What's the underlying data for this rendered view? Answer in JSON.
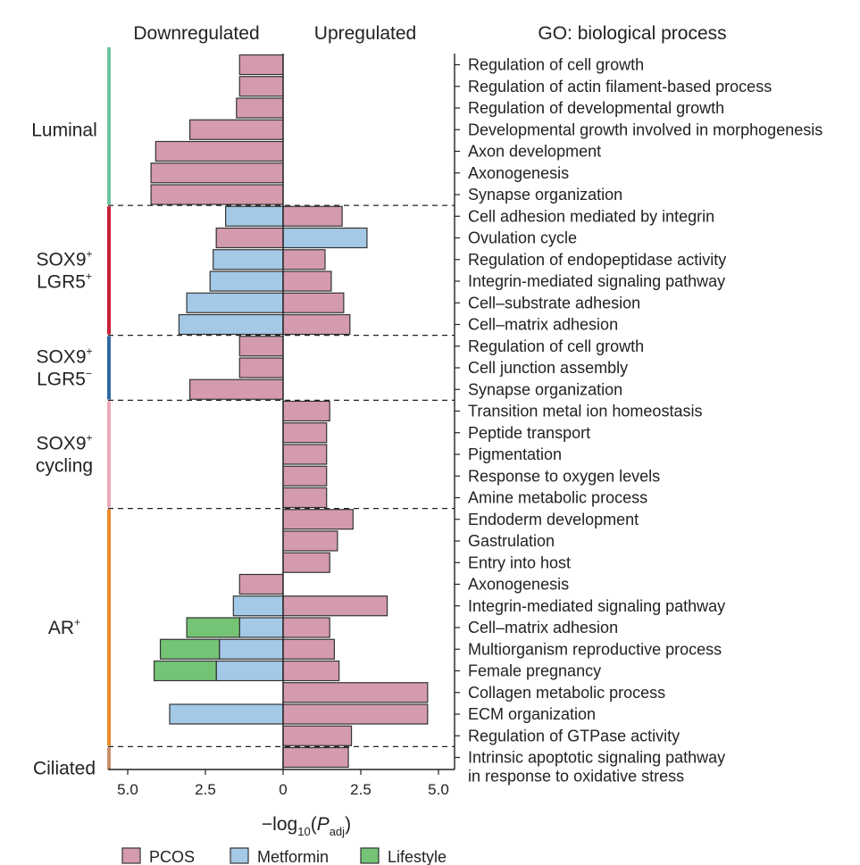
{
  "chart_data": {
    "type": "bar",
    "orientation": "horizontal-diverging",
    "headers": {
      "down": "Downregulated",
      "up": "Upregulated",
      "go": "GO: biological process"
    },
    "xlabel": "−log₁₀(P_adj)",
    "xlabel_parts": {
      "prefix": "−log",
      "sub1": "10",
      "open": "(",
      "italic": "P",
      "sub2": "adj",
      "close": ")"
    },
    "xlim": [
      -5.5,
      5.5
    ],
    "xticks": [
      {
        "value": -5,
        "label": "5.0"
      },
      {
        "value": -2.5,
        "label": "2.5"
      },
      {
        "value": 0,
        "label": "0"
      },
      {
        "value": 2.5,
        "label": "2.5"
      },
      {
        "value": 5,
        "label": "5.0"
      }
    ],
    "series_colors": {
      "PCOS": "#d49aae",
      "Metformin": "#a3c9e7",
      "Lifestyle": "#75c476"
    },
    "legend": [
      {
        "name": "PCOS",
        "color": "#d49aae"
      },
      {
        "name": "Metformin",
        "color": "#a3c9e7"
      },
      {
        "name": "Lifestyle",
        "color": "#75c476"
      }
    ],
    "groups": [
      {
        "name": "Luminal",
        "lines": [
          "Luminal"
        ],
        "sup": [
          ""
        ],
        "color": "#6cc3a0",
        "rows": [
          0,
          6
        ]
      },
      {
        "name": "SOX9+ LGR5+",
        "lines": [
          "SOX9",
          "LGR5"
        ],
        "sup": [
          "+",
          "+"
        ],
        "color": "#c8203a",
        "rows": [
          7,
          12
        ]
      },
      {
        "name": "SOX9+ LGR5−",
        "lines": [
          "SOX9",
          "LGR5"
        ],
        "sup": [
          "+",
          "−"
        ],
        "color": "#2f6aa3",
        "rows": [
          13,
          15
        ]
      },
      {
        "name": "SOX9+ cycling",
        "lines": [
          "SOX9",
          "cycling"
        ],
        "sup": [
          "+",
          ""
        ],
        "color": "#e8a9b8",
        "rows": [
          16,
          20
        ]
      },
      {
        "name": "AR+",
        "lines": [
          "AR"
        ],
        "sup": [
          "+"
        ],
        "color": "#ee8a2c",
        "rows": [
          21,
          31
        ]
      },
      {
        "name": "Ciliated",
        "lines": [
          "Ciliated"
        ],
        "sup": [
          ""
        ],
        "color": "#c89070",
        "rows": [
          32,
          33
        ]
      }
    ],
    "rows": [
      {
        "term": "Regulation of cell growth",
        "down": [
          {
            "s": "PCOS",
            "v": 1.4
          }
        ],
        "up": []
      },
      {
        "term": "Regulation of actin filament-based process",
        "down": [
          {
            "s": "PCOS",
            "v": 1.4
          }
        ],
        "up": []
      },
      {
        "term": "Regulation of developmental growth",
        "down": [
          {
            "s": "PCOS",
            "v": 1.5
          }
        ],
        "up": []
      },
      {
        "term": "Developmental growth involved in morphogenesis",
        "down": [
          {
            "s": "PCOS",
            "v": 3.0
          }
        ],
        "up": []
      },
      {
        "term": "Axon development",
        "down": [
          {
            "s": "PCOS",
            "v": 4.1
          }
        ],
        "up": []
      },
      {
        "term": "Axonogenesis",
        "down": [
          {
            "s": "PCOS",
            "v": 4.25
          }
        ],
        "up": []
      },
      {
        "term": "Synapse organization",
        "down": [
          {
            "s": "PCOS",
            "v": 4.25
          }
        ],
        "up": []
      },
      {
        "term": "Cell adhesion mediated by integrin",
        "down": [
          {
            "s": "Metformin",
            "v": 1.85
          }
        ],
        "up": [
          {
            "s": "PCOS",
            "v": 1.9
          }
        ]
      },
      {
        "term": "Ovulation cycle",
        "down": [
          {
            "s": "PCOS",
            "v": 2.15
          }
        ],
        "up": [
          {
            "s": "Metformin",
            "v": 2.7
          }
        ]
      },
      {
        "term": "Regulation of endopeptidase activity",
        "down": [
          {
            "s": "Metformin",
            "v": 2.25
          }
        ],
        "up": [
          {
            "s": "PCOS",
            "v": 1.35
          }
        ]
      },
      {
        "term": "Integrin-mediated signaling pathway",
        "down": [
          {
            "s": "Metformin",
            "v": 2.35
          }
        ],
        "up": [
          {
            "s": "PCOS",
            "v": 1.55
          }
        ]
      },
      {
        "term": "Cell–substrate adhesion",
        "down": [
          {
            "s": "Metformin",
            "v": 3.1
          }
        ],
        "up": [
          {
            "s": "PCOS",
            "v": 1.95
          }
        ]
      },
      {
        "term": "Cell–matrix adhesion",
        "down": [
          {
            "s": "Metformin",
            "v": 3.35
          }
        ],
        "up": [
          {
            "s": "PCOS",
            "v": 2.15
          }
        ]
      },
      {
        "term": "Regulation of cell growth",
        "down": [
          {
            "s": "PCOS",
            "v": 1.4
          }
        ],
        "up": []
      },
      {
        "term": "Cell junction assembly",
        "down": [
          {
            "s": "PCOS",
            "v": 1.4
          }
        ],
        "up": []
      },
      {
        "term": "Synapse organization",
        "down": [
          {
            "s": "PCOS",
            "v": 3.0
          }
        ],
        "up": []
      },
      {
        "term": "Transition metal ion homeostasis",
        "down": [],
        "up": [
          {
            "s": "PCOS",
            "v": 1.5
          }
        ]
      },
      {
        "term": "Peptide transport",
        "down": [],
        "up": [
          {
            "s": "PCOS",
            "v": 1.4
          }
        ]
      },
      {
        "term": "Pigmentation",
        "down": [],
        "up": [
          {
            "s": "PCOS",
            "v": 1.4
          }
        ]
      },
      {
        "term": "Response to oxygen levels",
        "down": [],
        "up": [
          {
            "s": "PCOS",
            "v": 1.4
          }
        ]
      },
      {
        "term": "Amine metabolic process",
        "down": [],
        "up": [
          {
            "s": "PCOS",
            "v": 1.4
          }
        ]
      },
      {
        "term": "Endoderm development",
        "down": [],
        "up": [
          {
            "s": "PCOS",
            "v": 2.25
          }
        ]
      },
      {
        "term": "Gastrulation",
        "down": [],
        "up": [
          {
            "s": "PCOS",
            "v": 1.75
          }
        ]
      },
      {
        "term": "Entry into host",
        "down": [],
        "up": [
          {
            "s": "PCOS",
            "v": 1.5
          }
        ]
      },
      {
        "term": "Axonogenesis",
        "down": [
          {
            "s": "PCOS",
            "v": 1.4
          }
        ],
        "up": []
      },
      {
        "term": "Integrin-mediated signaling pathway",
        "down": [
          {
            "s": "Metformin",
            "v": 1.6
          }
        ],
        "up": [
          {
            "s": "PCOS",
            "v": 3.35
          }
        ]
      },
      {
        "term": "Cell–matrix adhesion",
        "down": [
          {
            "s": "Metformin",
            "v": 1.4
          },
          {
            "s": "Lifestyle",
            "v": 1.7
          }
        ],
        "up": [
          {
            "s": "PCOS",
            "v": 1.5
          }
        ]
      },
      {
        "term": "Multiorganism reproductive process",
        "down": [
          {
            "s": "Metformin",
            "v": 2.05
          },
          {
            "s": "Lifestyle",
            "v": 1.9
          }
        ],
        "up": [
          {
            "s": "PCOS",
            "v": 1.65
          }
        ]
      },
      {
        "term": "Female pregnancy",
        "down": [
          {
            "s": "Metformin",
            "v": 2.15
          },
          {
            "s": "Lifestyle",
            "v": 2.0
          }
        ],
        "up": [
          {
            "s": "PCOS",
            "v": 1.8
          }
        ]
      },
      {
        "term": "Collagen metabolic process",
        "down": [],
        "up": [
          {
            "s": "PCOS",
            "v": 4.65
          }
        ]
      },
      {
        "term": "ECM organization",
        "down": [
          {
            "s": "Metformin",
            "v": 3.65
          }
        ],
        "up": [
          {
            "s": "PCOS",
            "v": 4.65
          }
        ]
      },
      {
        "term": "Regulation of GTPase activity",
        "down": [],
        "up": [
          {
            "s": "PCOS",
            "v": 2.2
          }
        ]
      },
      {
        "term": "Intrinsic apoptotic signaling pathway",
        "term2": "in response to oxidative stress",
        "down": [],
        "up": [
          {
            "s": "PCOS",
            "v": 2.1
          }
        ]
      }
    ]
  }
}
